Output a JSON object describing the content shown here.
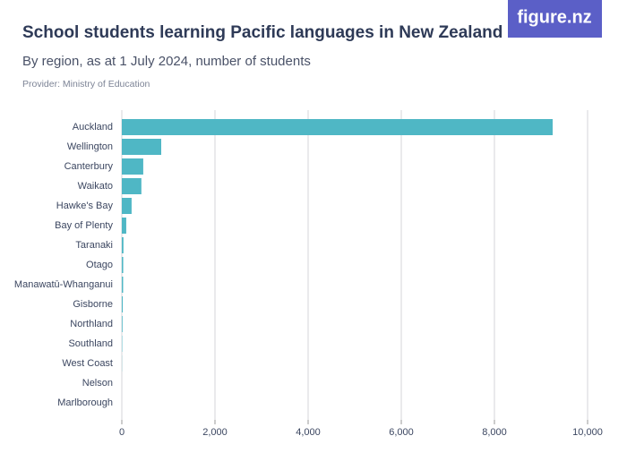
{
  "logo": "figure.nz",
  "chart_data": {
    "type": "bar",
    "orientation": "horizontal",
    "title": "School students learning Pacific languages in New Zealand",
    "subtitle": "By region, as at 1 July 2024, number of students",
    "provider": "Provider: Ministry of Education",
    "categories": [
      "Auckland",
      "Wellington",
      "Canterbury",
      "Waikato",
      "Hawke's Bay",
      "Bay of Plenty",
      "Taranaki",
      "Otago",
      "Manawatū-Whanganui",
      "Gisborne",
      "Northland",
      "Southland",
      "West Coast",
      "Nelson",
      "Marlborough"
    ],
    "values": [
      9250,
      846,
      460,
      420,
      210,
      95,
      35,
      30,
      28,
      20,
      15,
      8,
      3,
      0,
      0
    ],
    "color": "#4fb7c5",
    "xlim": [
      0,
      10000
    ],
    "xticks": [
      0,
      {
        "value": 2000,
        "label": "2,000"
      },
      {
        "value": 4000,
        "label": "4,000"
      },
      {
        "value": 6000,
        "label": "6,000"
      },
      {
        "value": 8000,
        "label": "8,000"
      },
      {
        "value": 10000,
        "label": "10,000"
      }
    ],
    "grid": true
  }
}
